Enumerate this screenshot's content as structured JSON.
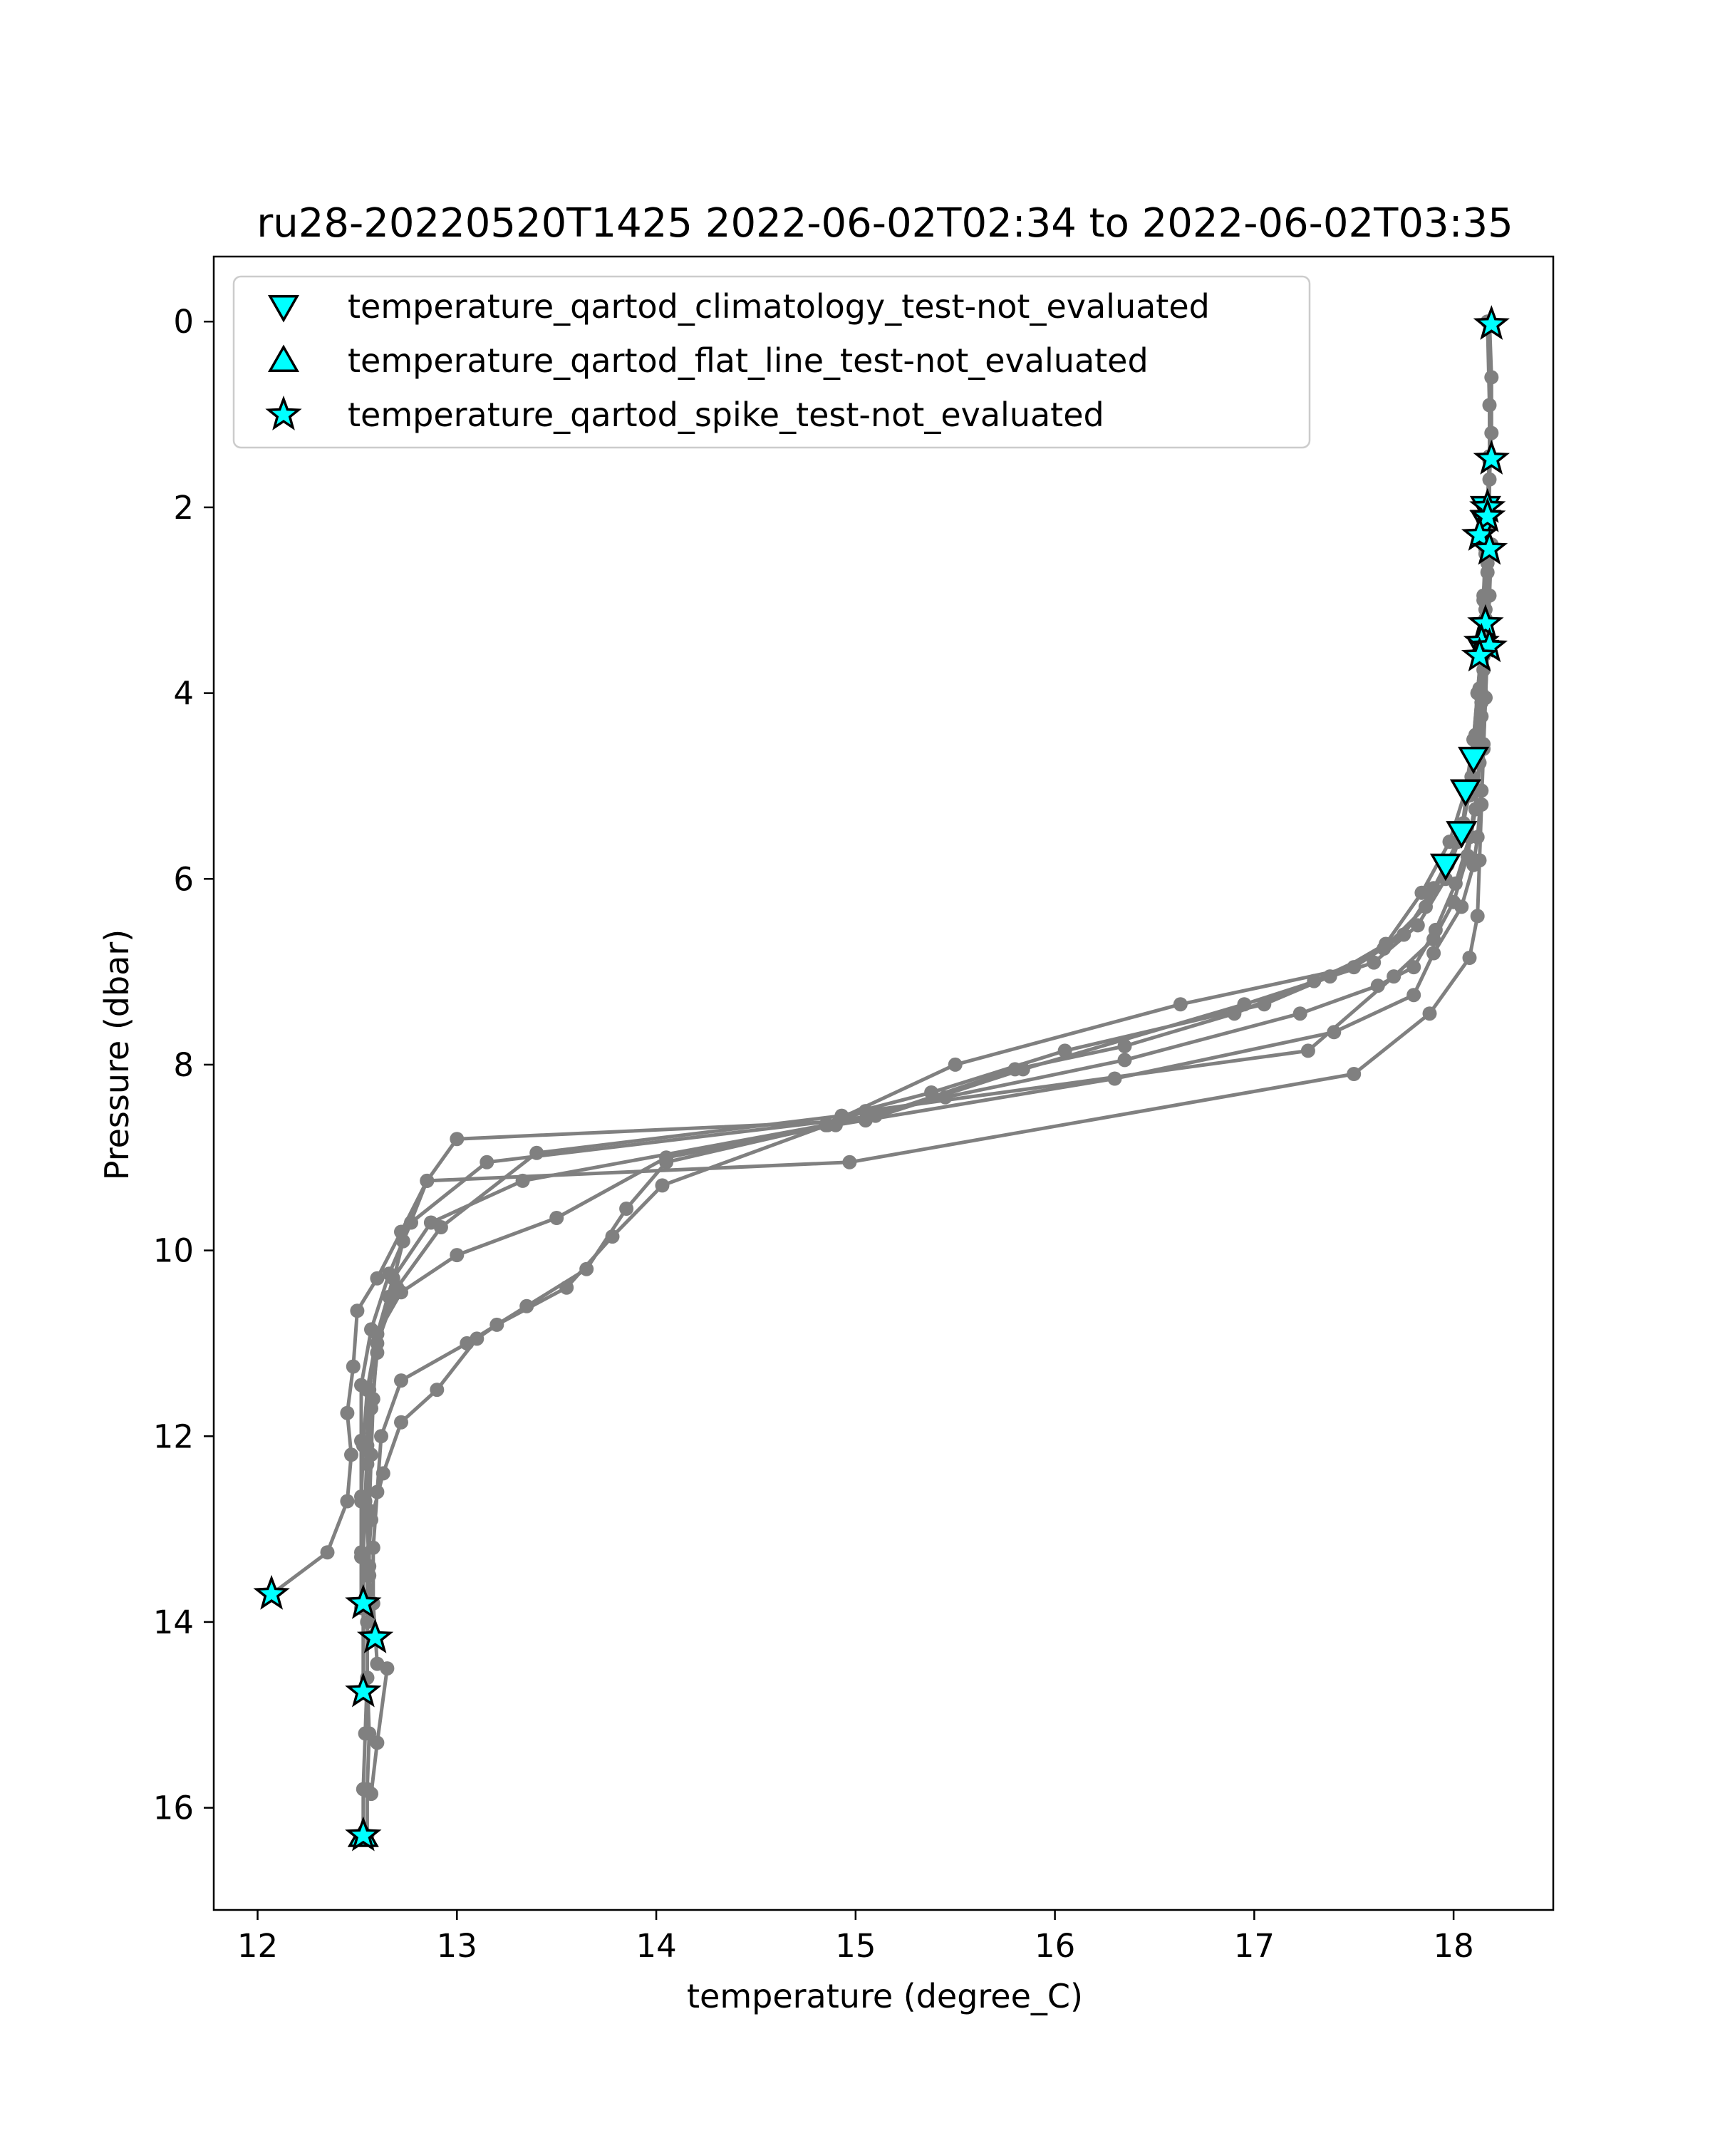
{
  "chart_data": {
    "type": "scatter",
    "title": "ru28-20220520T1425 2022-06-02T02:34 to 2022-06-02T03:35",
    "xlabel": "temperature (degree_C)",
    "ylabel": "Pressure (dbar)",
    "xlim": [
      11.78,
      18.5
    ],
    "ylim": [
      17.1,
      -0.7
    ],
    "y_inverted": true,
    "xticks": [
      12,
      13,
      14,
      15,
      16,
      17,
      18
    ],
    "yticks": [
      0,
      2,
      4,
      6,
      8,
      10,
      12,
      14,
      16
    ],
    "grid": false,
    "legend_position": "top-left",
    "colors": {
      "profile_line": "#808080",
      "marker_fill": "#00ffff",
      "marker_edge": "#000000"
    },
    "profiles": [
      {
        "points": [
          [
            18.18,
            0.0
          ],
          [
            18.19,
            0.6
          ],
          [
            18.19,
            1.2
          ],
          [
            18.18,
            1.7
          ],
          [
            18.18,
            2.2
          ],
          [
            18.17,
            2.7
          ],
          [
            18.16,
            3.2
          ],
          [
            18.15,
            3.6
          ],
          [
            18.14,
            4.1
          ],
          [
            18.12,
            4.6
          ],
          [
            18.08,
            5.1
          ],
          [
            18.02,
            5.6
          ],
          [
            17.9,
            6.1
          ],
          [
            17.75,
            6.6
          ],
          [
            17.5,
            6.95
          ],
          [
            16.63,
            7.35
          ],
          [
            15.5,
            8.0
          ],
          [
            14.85,
            8.65
          ],
          [
            13.33,
            9.25
          ],
          [
            12.87,
            9.7
          ],
          [
            12.68,
            10.3
          ],
          [
            12.6,
            10.9
          ],
          [
            12.56,
            11.5
          ],
          [
            12.55,
            12.1
          ],
          [
            12.54,
            12.7
          ],
          [
            12.53,
            13.3
          ],
          [
            12.53,
            13.8
          ]
        ]
      },
      {
        "points": [
          [
            18.17,
            0.0
          ],
          [
            18.18,
            0.9
          ],
          [
            18.18,
            1.5
          ],
          [
            18.17,
            2.0
          ],
          [
            18.16,
            2.5
          ],
          [
            18.15,
            3.0
          ],
          [
            18.14,
            3.5
          ],
          [
            18.12,
            4.0
          ],
          [
            18.1,
            4.5
          ],
          [
            18.07,
            5.0
          ],
          [
            18.04,
            5.5
          ],
          [
            17.96,
            6.0
          ],
          [
            17.82,
            6.5
          ],
          [
            17.6,
            6.9
          ],
          [
            16.95,
            7.35
          ],
          [
            15.84,
            8.05
          ],
          [
            15.05,
            8.6
          ],
          [
            13.0,
            8.8
          ],
          [
            12.85,
            9.25
          ],
          [
            12.73,
            9.9
          ],
          [
            12.66,
            10.5
          ],
          [
            12.6,
            11.1
          ],
          [
            12.57,
            11.7
          ],
          [
            12.55,
            12.3
          ],
          [
            12.55,
            12.9
          ],
          [
            12.56,
            13.5
          ],
          [
            12.58,
            14.15
          ]
        ]
      },
      {
        "points": [
          [
            18.18,
            1.45
          ],
          [
            18.17,
            1.95
          ],
          [
            18.16,
            2.45
          ],
          [
            18.15,
            2.95
          ],
          [
            18.14,
            3.45
          ],
          [
            18.13,
            3.95
          ],
          [
            18.11,
            4.45
          ],
          [
            18.09,
            4.9
          ],
          [
            18.05,
            5.4
          ],
          [
            17.97,
            5.85
          ],
          [
            17.86,
            6.3
          ],
          [
            17.65,
            6.75
          ],
          [
            17.3,
            7.1
          ],
          [
            16.9,
            7.45
          ],
          [
            16.35,
            7.8
          ],
          [
            15.8,
            8.05
          ],
          [
            15.1,
            8.55
          ],
          [
            13.15,
            9.05
          ],
          [
            12.77,
            9.7
          ],
          [
            12.66,
            10.25
          ],
          [
            12.57,
            10.85
          ],
          [
            12.52,
            11.45
          ],
          [
            12.52,
            12.05
          ],
          [
            12.52,
            12.65
          ],
          [
            12.52,
            13.25
          ],
          [
            12.53,
            13.85
          ],
          [
            12.53,
            14.75
          ]
        ]
      },
      {
        "points": [
          [
            18.18,
            2.1
          ],
          [
            18.17,
            2.6
          ],
          [
            18.16,
            3.1
          ],
          [
            18.14,
            3.55
          ],
          [
            18.12,
            4.0
          ],
          [
            18.1,
            4.5
          ],
          [
            18.06,
            5.05
          ],
          [
            17.98,
            5.6
          ],
          [
            17.84,
            6.15
          ],
          [
            17.66,
            6.7
          ],
          [
            17.38,
            7.05
          ],
          [
            17.05,
            7.35
          ],
          [
            16.05,
            7.85
          ],
          [
            15.38,
            8.3
          ],
          [
            14.93,
            8.55
          ],
          [
            13.4,
            8.95
          ],
          [
            12.92,
            9.75
          ],
          [
            12.7,
            10.4
          ],
          [
            12.6,
            11.0
          ],
          [
            12.58,
            11.6
          ],
          [
            12.57,
            12.2
          ],
          [
            12.56,
            12.8
          ],
          [
            12.56,
            13.4
          ],
          [
            12.55,
            14.0
          ],
          [
            12.55,
            14.6
          ],
          [
            12.54,
            15.2
          ],
          [
            12.53,
            15.8
          ],
          [
            12.53,
            16.3
          ]
        ]
      },
      {
        "points": [
          [
            18.19,
            2.4
          ],
          [
            18.18,
            2.95
          ],
          [
            18.17,
            3.5
          ],
          [
            18.16,
            4.05
          ],
          [
            18.15,
            4.55
          ],
          [
            18.14,
            5.05
          ],
          [
            18.12,
            5.55
          ],
          [
            18.1,
            5.85
          ],
          [
            18.04,
            6.3
          ],
          [
            17.9,
            6.8
          ],
          [
            17.8,
            7.25
          ],
          [
            17.4,
            7.65
          ],
          [
            16.3,
            8.15
          ],
          [
            14.9,
            8.65
          ],
          [
            14.05,
            9.0
          ],
          [
            13.5,
            9.65
          ],
          [
            13.0,
            10.05
          ],
          [
            12.72,
            10.45
          ],
          [
            12.6,
            10.9
          ],
          [
            12.55,
            11.5
          ],
          [
            12.53,
            12.1
          ],
          [
            12.52,
            12.7
          ],
          [
            12.52,
            13.3
          ],
          [
            12.52,
            13.85
          ]
        ]
      },
      {
        "points": [
          [
            18.16,
            3.2
          ],
          [
            18.15,
            3.75
          ],
          [
            18.14,
            4.25
          ],
          [
            18.13,
            4.75
          ],
          [
            18.11,
            5.25
          ],
          [
            18.07,
            5.75
          ],
          [
            18.0,
            6.25
          ],
          [
            17.9,
            6.65
          ],
          [
            17.7,
            7.05
          ],
          [
            17.27,
            7.85
          ],
          [
            15.05,
            8.5
          ],
          [
            14.03,
            9.3
          ],
          [
            13.78,
            9.85
          ],
          [
            13.55,
            10.4
          ],
          [
            13.2,
            10.8
          ],
          [
            13.1,
            10.95
          ],
          [
            12.9,
            11.5
          ],
          [
            12.72,
            11.85
          ],
          [
            12.63,
            12.4
          ],
          [
            12.57,
            12.9
          ],
          [
            12.55,
            13.5
          ],
          [
            12.55,
            14.0
          ],
          [
            12.55,
            14.6
          ],
          [
            12.56,
            15.2
          ],
          [
            12.55,
            15.8
          ],
          [
            12.55,
            16.3
          ]
        ]
      },
      {
        "points": [
          [
            18.14,
            3.5
          ],
          [
            18.14,
            4.0
          ],
          [
            18.13,
            4.55
          ],
          [
            18.12,
            5.05
          ],
          [
            18.08,
            5.55
          ],
          [
            18.01,
            6.05
          ],
          [
            17.91,
            6.55
          ],
          [
            17.8,
            6.95
          ],
          [
            17.62,
            7.15
          ],
          [
            17.23,
            7.45
          ],
          [
            16.35,
            7.95
          ],
          [
            15.45,
            8.35
          ],
          [
            14.86,
            8.65
          ],
          [
            14.05,
            9.05
          ],
          [
            13.85,
            9.55
          ],
          [
            13.65,
            10.2
          ],
          [
            13.35,
            10.6
          ],
          [
            13.05,
            11.0
          ],
          [
            12.72,
            11.4
          ],
          [
            12.62,
            12.0
          ],
          [
            12.6,
            12.6
          ],
          [
            12.58,
            13.2
          ],
          [
            12.58,
            13.8
          ],
          [
            12.6,
            14.45
          ],
          [
            12.65,
            14.5
          ],
          [
            12.6,
            15.3
          ],
          [
            12.57,
            15.85
          ]
        ]
      },
      {
        "points": [
          [
            18.17,
            3.45
          ],
          [
            18.16,
            4.05
          ],
          [
            18.15,
            4.6
          ],
          [
            18.14,
            5.2
          ],
          [
            18.13,
            5.8
          ],
          [
            18.12,
            6.4
          ],
          [
            18.08,
            6.85
          ],
          [
            17.88,
            7.45
          ],
          [
            17.5,
            8.1
          ],
          [
            14.97,
            9.05
          ],
          [
            12.85,
            9.25
          ],
          [
            12.72,
            9.8
          ],
          [
            12.6,
            10.3
          ],
          [
            12.5,
            10.65
          ],
          [
            12.48,
            11.25
          ],
          [
            12.45,
            11.75
          ],
          [
            12.47,
            12.2
          ],
          [
            12.45,
            12.7
          ],
          [
            12.35,
            13.25
          ],
          [
            12.07,
            13.7
          ]
        ]
      }
    ],
    "markers": {
      "climatology_test": [
        [
          18.1,
          4.7
        ],
        [
          18.06,
          5.05
        ],
        [
          18.04,
          5.5
        ],
        [
          17.96,
          5.85
        ],
        [
          18.16,
          2.0
        ],
        [
          18.16,
          2.15
        ],
        [
          18.15,
          3.55
        ]
      ],
      "flat_line_test": [
        [
          12.53,
          16.3
        ]
      ],
      "spike_test": [
        [
          18.19,
          0.03
        ],
        [
          18.19,
          1.48
        ],
        [
          18.17,
          2.0
        ],
        [
          18.17,
          2.1
        ],
        [
          18.13,
          2.3
        ],
        [
          18.18,
          2.45
        ],
        [
          18.16,
          3.25
        ],
        [
          18.14,
          3.45
        ],
        [
          18.18,
          3.5
        ],
        [
          18.13,
          3.6
        ],
        [
          12.53,
          13.8
        ],
        [
          12.59,
          14.17
        ],
        [
          12.53,
          14.75
        ],
        [
          12.07,
          13.7
        ],
        [
          12.53,
          16.3
        ]
      ]
    },
    "legend": [
      {
        "label": "temperature_qartod_climatology_test-not_evaluated",
        "marker": "triangle-down"
      },
      {
        "label": "temperature_qartod_flat_line_test-not_evaluated",
        "marker": "triangle-up"
      },
      {
        "label": "temperature_qartod_spike_test-not_evaluated",
        "marker": "star"
      }
    ]
  }
}
